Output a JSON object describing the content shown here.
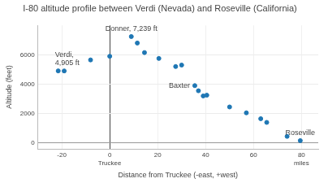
{
  "chart_data": {
    "type": "scatter",
    "title": "I-80 altitude profile between Verdi (Nevada) and Roseville (California)",
    "x_label": "Distance from Truckee (-east, +west)",
    "y_label": "Altitude (feet)",
    "x": [
      -21.5,
      -19,
      -8,
      0,
      9,
      11.5,
      14.5,
      20.5,
      27.5,
      30,
      35.5,
      37,
      39,
      40.5,
      50,
      57,
      63,
      65.5,
      74,
      79.5
    ],
    "values": [
      4905,
      4900,
      5650,
      5900,
      7239,
      6800,
      6150,
      5750,
      5200,
      5300,
      3900,
      3550,
      3200,
      3250,
      2450,
      2050,
      1650,
      1400,
      450,
      160
    ],
    "color": "#1f77b4",
    "marker": "circle",
    "xlim": [
      -30,
      87
    ],
    "ylim": [
      -400,
      8000
    ],
    "xticks": [
      -20,
      {
        "value": 0,
        "label": "0\nTruckee"
      },
      20,
      40,
      60,
      {
        "value": 80,
        "label": "80\nmiles"
      }
    ],
    "yticks": [
      0,
      2000,
      4000,
      6000
    ],
    "grid": true,
    "annotations": [
      {
        "x": -21.5,
        "y": 4905,
        "text": "Verdi,\n4,905 ft"
      },
      {
        "x": 9,
        "y": 7239,
        "text": "Donner, 7,239 ft"
      },
      {
        "x": 35.5,
        "y": 3900,
        "text": "Baxter"
      },
      {
        "x": 79.5,
        "y": 160,
        "text": "Roseville"
      }
    ]
  }
}
